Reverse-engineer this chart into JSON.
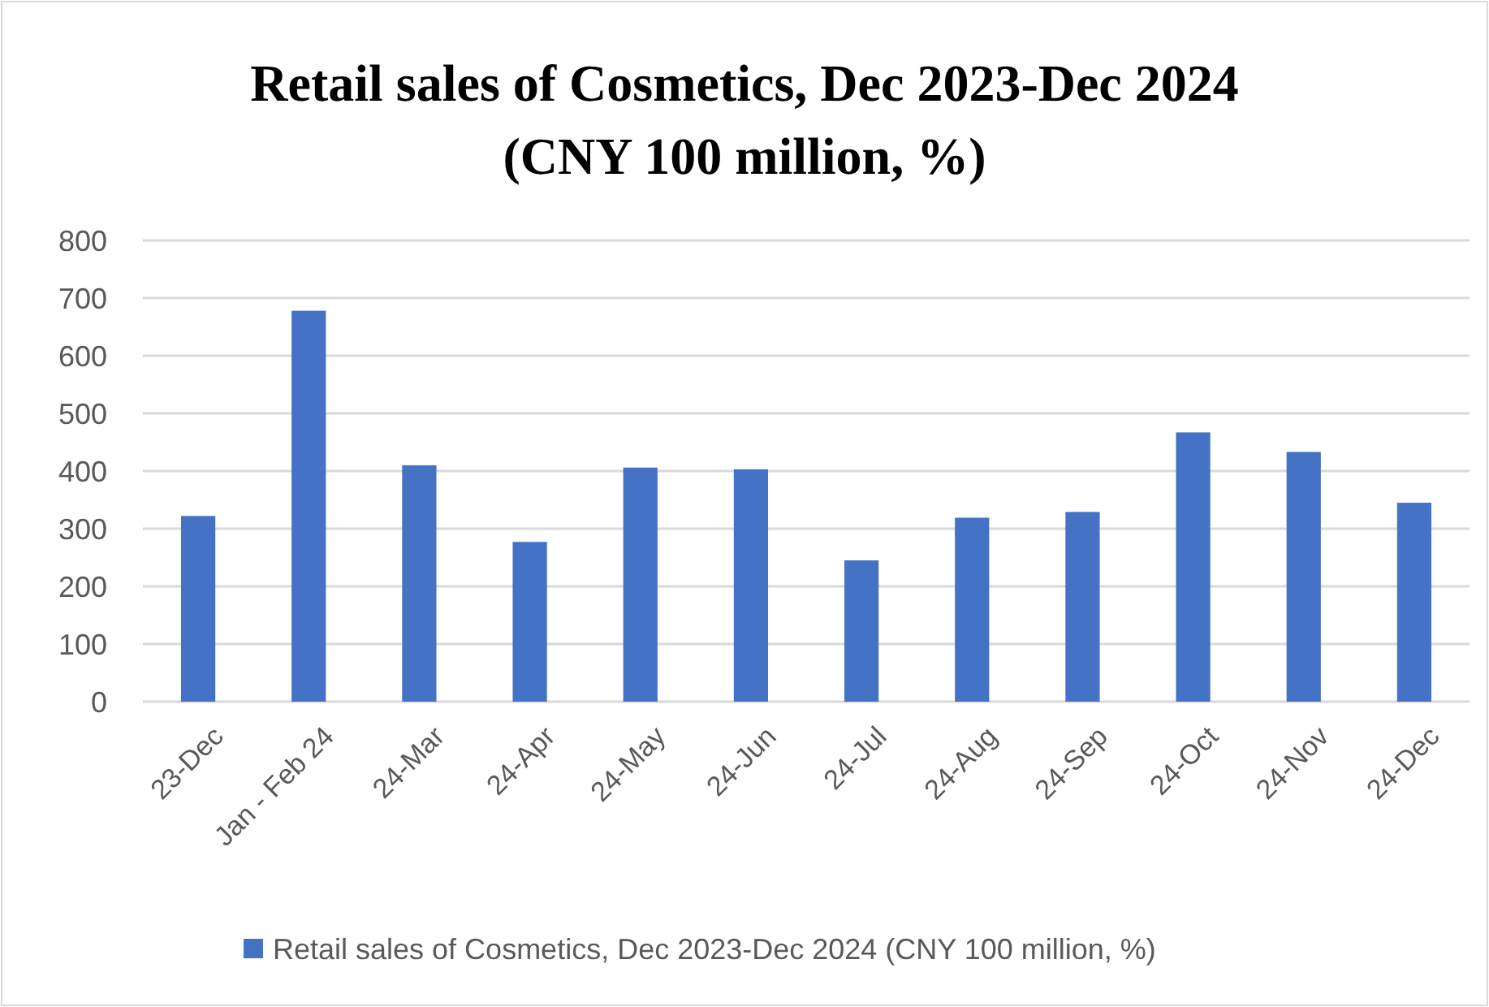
{
  "chart_data": {
    "type": "bar",
    "title": "Retail sales of Cosmetics, Dec 2023-Dec 2024\n(CNY 100 million, %)",
    "categories": [
      "23-Dec",
      "Jan - Feb 24",
      "24-Mar",
      "24-Apr",
      "24-May",
      "24-Jun",
      "24-Jul",
      "24-Aug",
      "24-Sep",
      "24-Oct",
      "24-Nov",
      "24-Dec"
    ],
    "series": [
      {
        "name": "Retail sales of Cosmetics, Dec 2023-Dec 2024 (CNY 100 million, %)",
        "color": "#4472c4",
        "values": [
          322,
          678,
          410,
          277,
          406,
          403,
          245,
          319,
          329,
          467,
          433,
          345
        ]
      }
    ],
    "ylim": [
      0,
      800
    ],
    "yticks": [
      0,
      100,
      200,
      300,
      400,
      500,
      600,
      700,
      800
    ],
    "grid": "y",
    "legend": "bottom"
  }
}
